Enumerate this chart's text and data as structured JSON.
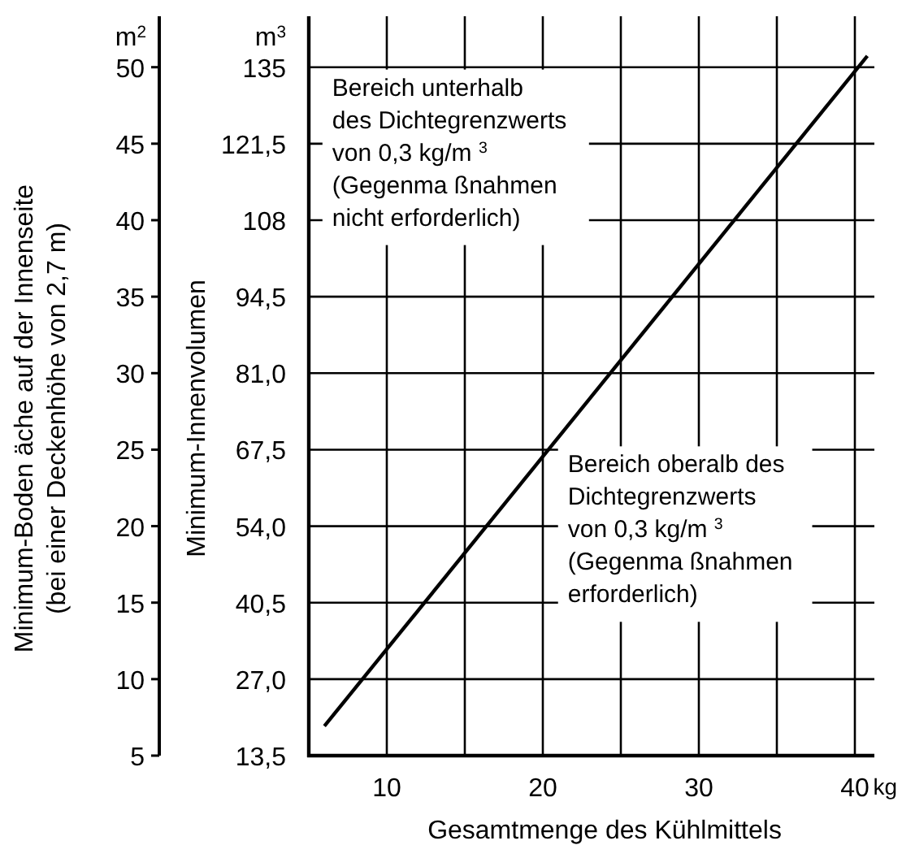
{
  "chart_data": {
    "type": "line",
    "xlabel": "Gesamtmenge des Kühlmittels",
    "ylabel": "Minimum-Innenvolumen",
    "y2label": "Minimum-Boden  äche auf der Innenseite\n(bei einer Deckenhöhe von 2,7 m)",
    "x": [
      6,
      40.8
    ],
    "series": [
      {
        "color": "#000000",
        "values": [
          18.7,
          137
        ]
      }
    ],
    "xlim": [
      5,
      41.25
    ],
    "xticks": [
      10,
      {
        "value": 15,
        "label": null
      },
      20,
      {
        "value": 25,
        "label": null
      },
      30,
      {
        "value": 35,
        "label": null
      },
      40
    ],
    "ylim": [
      13.5,
      144
    ],
    "yticks": [
      {
        "value": 13.5,
        "label": "13,5"
      },
      {
        "value": 27,
        "label": "27,0"
      },
      {
        "value": 40.5,
        "label": "40,5"
      },
      {
        "value": 54,
        "label": "54,0"
      },
      {
        "value": 67.5,
        "label": "67,5"
      },
      {
        "value": 81,
        "label": "81,0"
      },
      {
        "value": 94.5,
        "label": "94,5"
      },
      108,
      {
        "value": 121.5,
        "label": "121,5"
      },
      135
    ],
    "y2lim": [
      5,
      53.33
    ],
    "y2ticks": [
      5,
      10,
      15,
      20,
      25,
      30,
      35,
      40,
      45,
      50
    ],
    "grid": true,
    "marker": "none",
    "line_style": "solid",
    "annotations": [
      "m$^{2}$",
      "m$^{3}$",
      "kg",
      "Bereich unterhalb\ndes Dichtegrenzwerts\nvon 0,3 kg/m $^{3}$\n(Gegenma ßnahmen\nnicht erforderlich)",
      "Bereich oberalb des\nDichtegrenzwerts\nvon 0,3 kg/m $^{3}$\n(Gegenma ßnahmen\nerforderlich)"
    ]
  }
}
